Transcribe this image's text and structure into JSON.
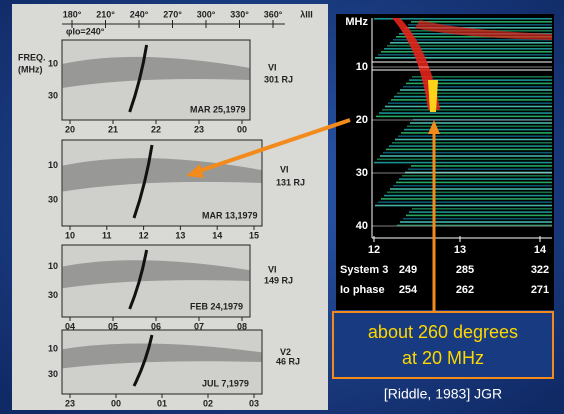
{
  "left_figure": {
    "top_axis": [
      "180°",
      "210°",
      "240°",
      "270°",
      "300°",
      "330°",
      "360°",
      "λIII"
    ],
    "phase_label": "φIo=240°",
    "freq_label": [
      "FREQ.",
      "(MHz)"
    ],
    "panels": [
      {
        "y_labels": [
          "10",
          "30"
        ],
        "craft": "VI",
        "distance": "301 RJ",
        "date": "MAR 25,1979",
        "hours": [
          "20",
          "21",
          "22",
          "23",
          "00"
        ]
      },
      {
        "y_labels": [
          "10",
          "30"
        ],
        "craft": "VI",
        "distance": "131 RJ",
        "date": "MAR 13,1979",
        "hours": [
          "10",
          "11",
          "12",
          "13",
          "14",
          "15"
        ]
      },
      {
        "y_labels": [
          "10",
          "30"
        ],
        "craft": "VI",
        "distance": "149 RJ",
        "date": "FEB 24,1979",
        "hours": [
          "04",
          "05",
          "06",
          "07",
          "08"
        ]
      },
      {
        "y_labels": [
          "10",
          "30"
        ],
        "craft": "V2",
        "distance": "46 RJ",
        "date": "JUL 7,1979",
        "hours": [
          "23",
          "00",
          "01",
          "02",
          "03"
        ]
      }
    ]
  },
  "right_figure": {
    "unit": "MHz",
    "y_labels": [
      "10",
      "20",
      "30",
      "40"
    ],
    "x_labels": [
      "12",
      "13",
      "14"
    ],
    "rows": [
      {
        "label": "System 3",
        "values": [
          "249",
          "285",
          "322"
        ]
      },
      {
        "label": "Io phase",
        "values": [
          "254",
          "262",
          "271"
        ]
      }
    ]
  },
  "callout": [
    "about 260 degrees",
    "at 20 MHz"
  ],
  "citation": "[Riddle, 1983] JGR"
}
